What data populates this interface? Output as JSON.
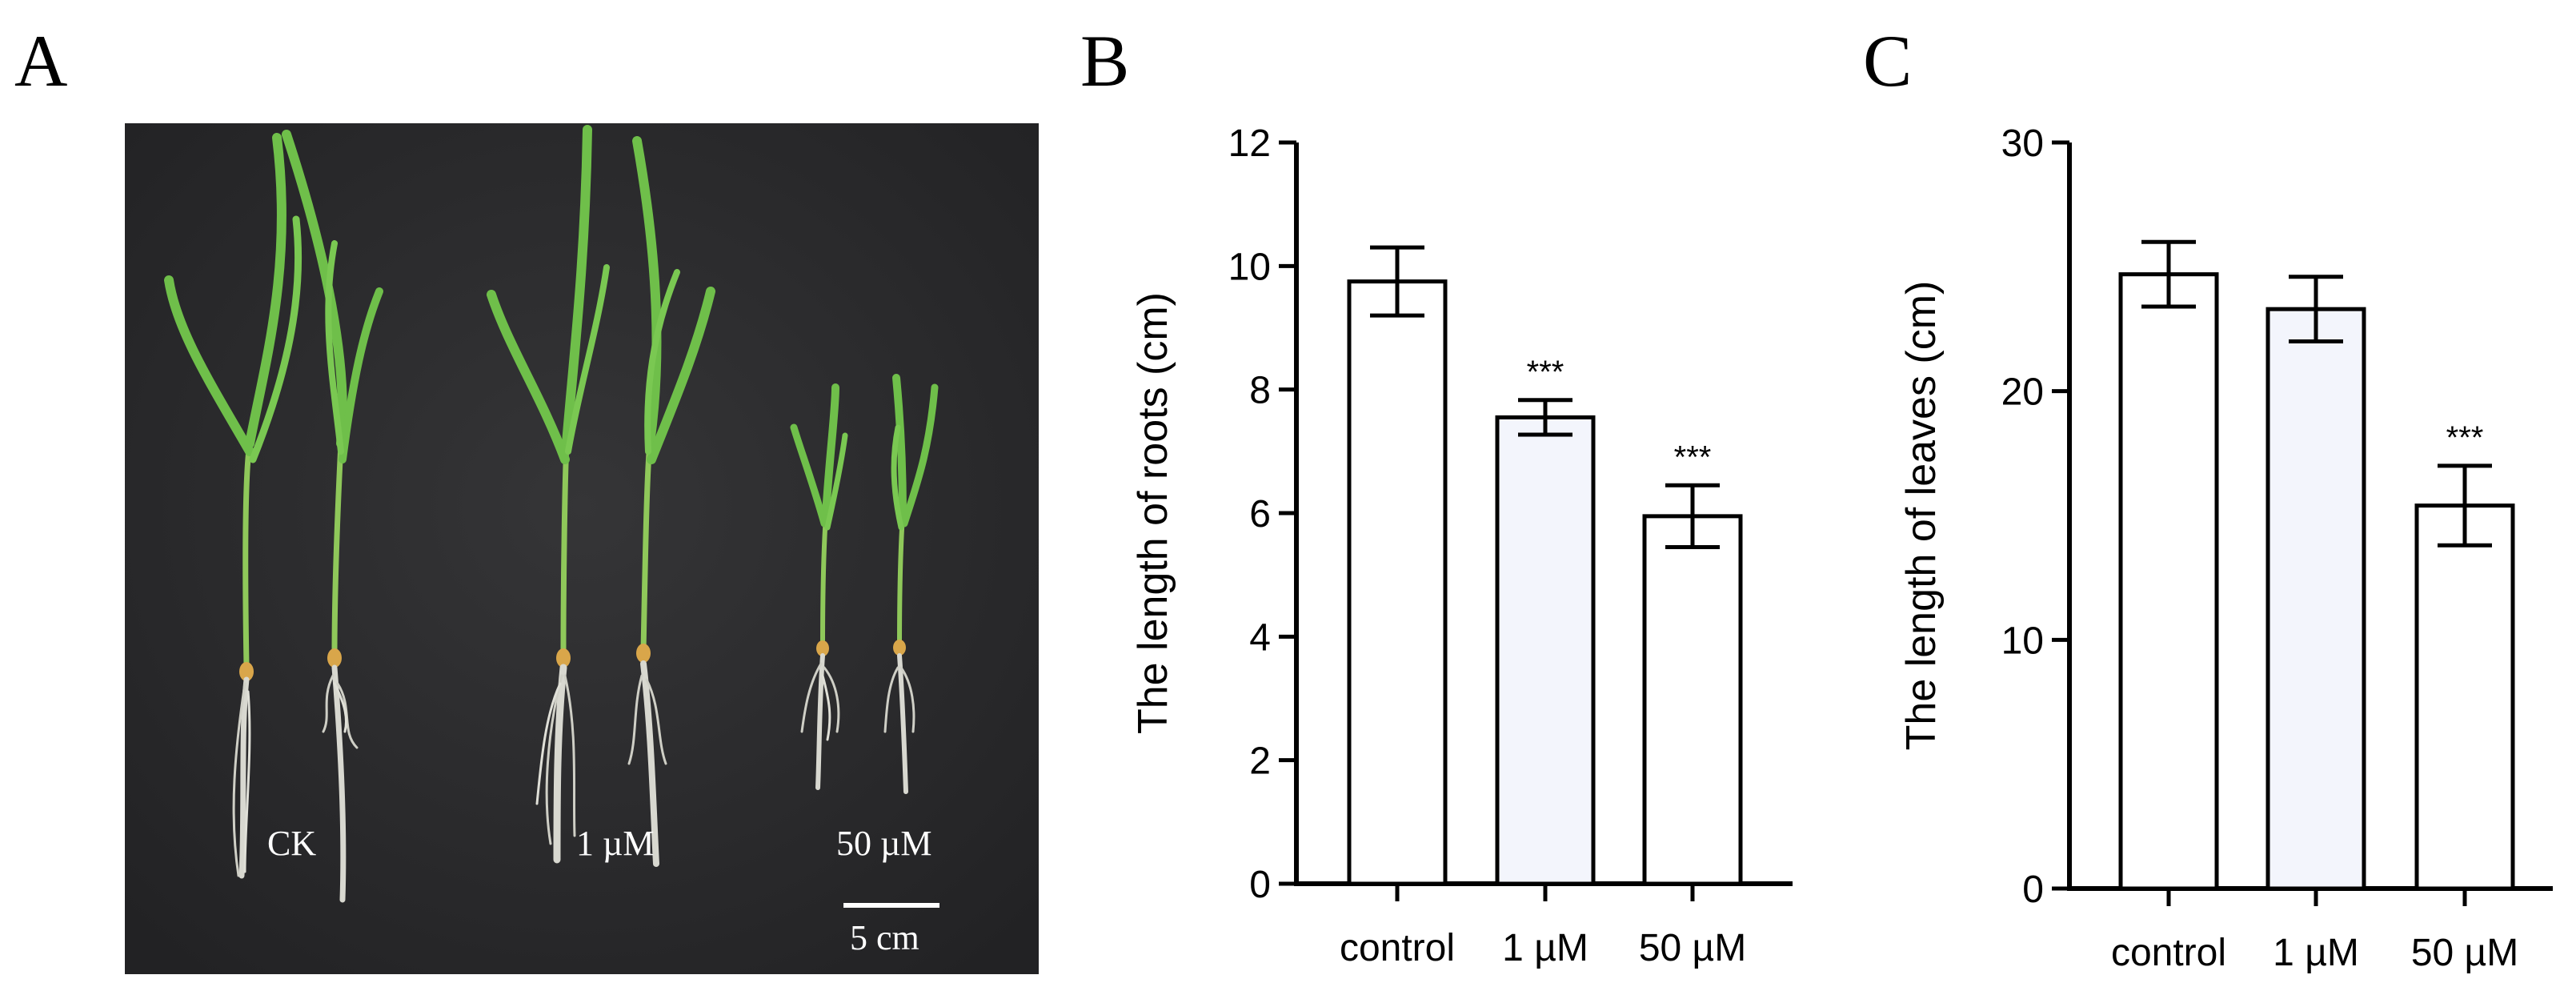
{
  "panels": {
    "a": "A",
    "b": "B",
    "c": "C"
  },
  "photo": {
    "labels": {
      "ck": "CK",
      "one_um": "1 µM",
      "fifty_um": "50 µM"
    },
    "scale_bar_label": "5 cm"
  },
  "chart_data": [
    {
      "type": "bar",
      "categories": [
        "control",
        "1 µM",
        "50 µM"
      ],
      "values": [
        9.75,
        7.55,
        5.95
      ],
      "errors": [
        0.55,
        0.28,
        0.5
      ],
      "significance": [
        "",
        "***",
        "***"
      ],
      "ylabel": "The length of roots (cm)",
      "xlabel": "",
      "ylim": [
        0,
        12
      ],
      "yticks": [
        0,
        2,
        4,
        6,
        8,
        10,
        12
      ],
      "bar_colors": [
        "#ffffff",
        "#f3f5fc",
        "#ffffff"
      ],
      "grid": false
    },
    {
      "type": "bar",
      "categories": [
        "control",
        "1 µM",
        "50 µM"
      ],
      "values": [
        24.7,
        23.3,
        15.4
      ],
      "errors": [
        1.3,
        1.3,
        1.6
      ],
      "significance": [
        "",
        "",
        "***"
      ],
      "ylabel": "The length of leaves (cm)",
      "xlabel": "",
      "ylim": [
        0,
        30
      ],
      "yticks": [
        0,
        10,
        20,
        30
      ],
      "bar_colors": [
        "#ffffff",
        "#f3f5fc",
        "#ffffff"
      ],
      "grid": false
    }
  ]
}
